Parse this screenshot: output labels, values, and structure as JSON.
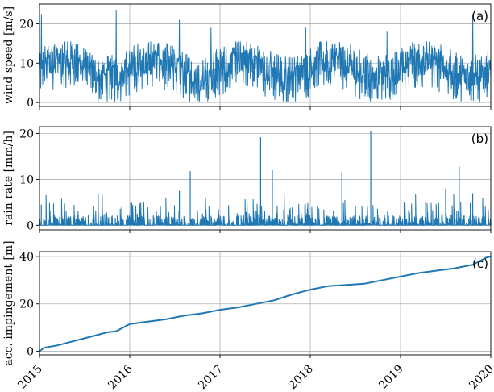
{
  "chart_data": [
    {
      "type": "line",
      "panel_label": "(a)",
      "ylabel": "wind speed [m/s]",
      "xlim": [
        2015,
        2020
      ],
      "ylim": [
        -1,
        25
      ],
      "yticks": [
        0,
        10,
        20
      ],
      "xticks": [
        2015,
        2016,
        2017,
        2018,
        2019,
        2020
      ],
      "grid": true,
      "color": "#1f77b4",
      "series": [
        {
          "x_range": [
            2015.0,
            2020.0
          ],
          "description_values": {
            "typical_range": [
              2,
              14
            ],
            "peaks": [
              [
                2015.02,
                22.5
              ],
              [
                2015.85,
                23.5
              ],
              [
                2016.55,
                21
              ],
              [
                2019.8,
                22.5
              ],
              [
                2016.9,
                19
              ],
              [
                2017.95,
                19
              ],
              [
                2018.85,
                18
              ]
            ]
          }
        }
      ]
    },
    {
      "type": "line",
      "panel_label": "(b)",
      "ylabel": "rain rate [mm/h]",
      "xlim": [
        2015,
        2020
      ],
      "ylim": [
        -1,
        21.5
      ],
      "yticks": [
        0,
        10,
        20
      ],
      "xticks": [
        2015,
        2016,
        2017,
        2018,
        2019,
        2020
      ],
      "grid": true,
      "color": "#1f77b4",
      "series": [
        {
          "peaks": [
            [
              2015.02,
              4.5
            ],
            [
              2015.65,
              7
            ],
            [
              2016.55,
              7.5
            ],
            [
              2016.67,
              11.8
            ],
            [
              2017.45,
              19.2
            ],
            [
              2017.58,
              12
            ],
            [
              2018.35,
              11.7
            ],
            [
              2018.67,
              20.5
            ],
            [
              2019.65,
              12.8
            ],
            [
              2019.5,
              8
            ],
            [
              2019.8,
              7
            ]
          ]
        }
      ]
    },
    {
      "type": "line",
      "panel_label": "(c)",
      "ylabel": "acc. impingement [m]",
      "xlim": [
        2015,
        2020
      ],
      "ylim": [
        -1.5,
        42
      ],
      "yticks": [
        0,
        20,
        40
      ],
      "xticks": [
        2015,
        2016,
        2017,
        2018,
        2019,
        2020
      ],
      "xticklabels": [
        "2015",
        "2016",
        "2017",
        "2018",
        "2019",
        "2020"
      ],
      "grid": true,
      "color": "#1f77b4",
      "series": [
        {
          "x": [
            2015.0,
            2015.05,
            2015.2,
            2015.4,
            2015.6,
            2015.75,
            2015.85,
            2016.0,
            2016.2,
            2016.4,
            2016.6,
            2016.8,
            2017.0,
            2017.2,
            2017.4,
            2017.6,
            2017.8,
            2018.0,
            2018.2,
            2018.4,
            2018.6,
            2018.8,
            2019.0,
            2019.2,
            2019.4,
            2019.6,
            2019.8,
            2019.95,
            2020.0
          ],
          "y": [
            0.0,
            1.5,
            2.5,
            4.5,
            6.5,
            8.0,
            8.5,
            11.5,
            12.5,
            13.5,
            15.0,
            16.0,
            17.5,
            18.5,
            20.0,
            21.5,
            24.0,
            26.0,
            27.5,
            28.0,
            28.5,
            30.0,
            31.5,
            33.0,
            34.0,
            35.0,
            36.5,
            39.5,
            40.0
          ]
        }
      ]
    }
  ]
}
